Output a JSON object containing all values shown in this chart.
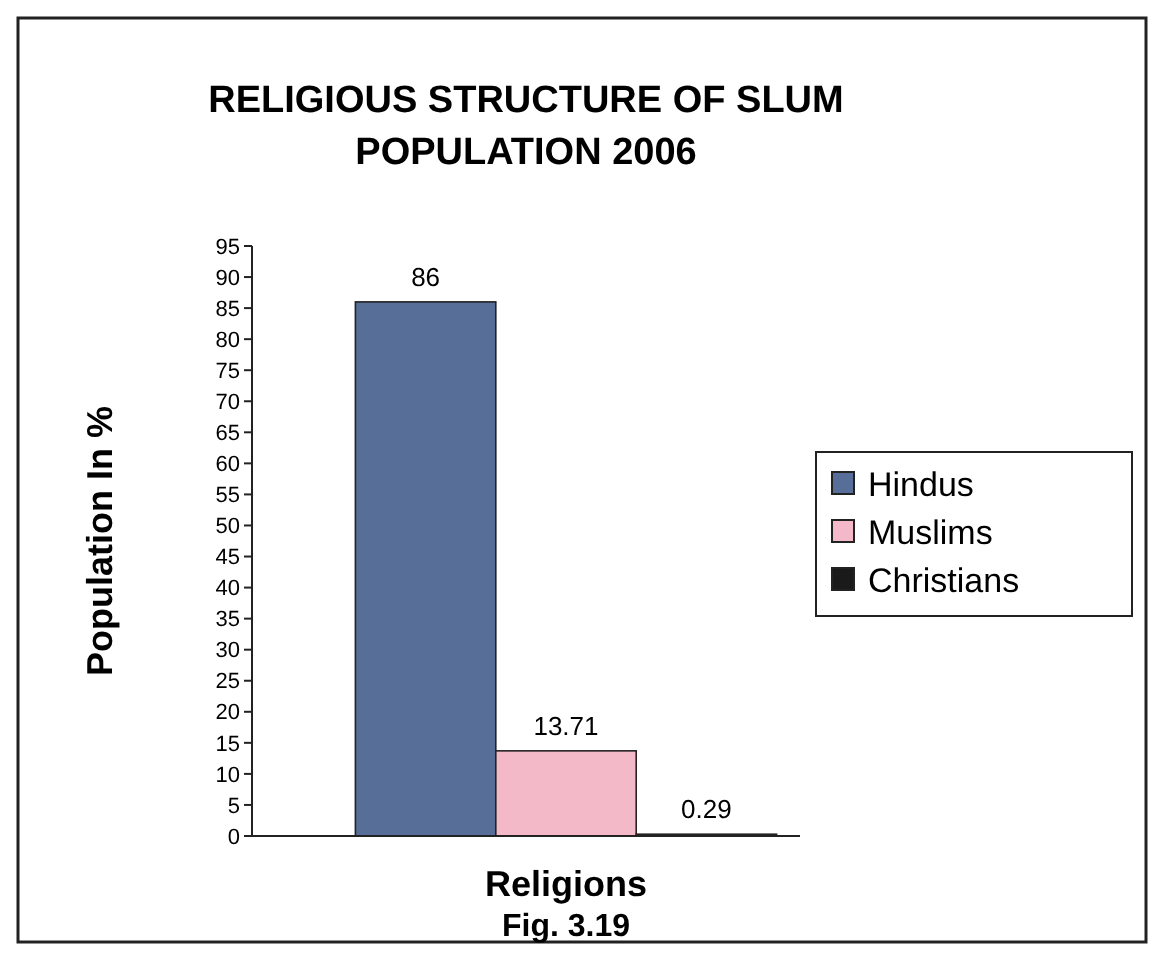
{
  "chart_data": {
    "type": "bar",
    "title": "RELIGIOUS STRUCTURE OF SLUM POPULATION 2006",
    "xlabel": "Religions",
    "ylabel": "Population In %",
    "annotations": [
      "Fig. 3.19"
    ],
    "categories": [
      null
    ],
    "series": [
      {
        "name": "Hindus",
        "color": "#566e98",
        "values": [
          86
        ]
      },
      {
        "name": "Muslims",
        "color": "#f3b9c9",
        "values": [
          13.71
        ]
      },
      {
        "name": "Christians",
        "color": "#1a1a1a",
        "values": [
          0.29
        ]
      }
    ],
    "ylim": [
      0,
      95
    ],
    "yticks": [
      0,
      5,
      10,
      15,
      20,
      25,
      30,
      35,
      40,
      45,
      50,
      55,
      60,
      65,
      70,
      75,
      80,
      85,
      90,
      95
    ],
    "data_labels": true,
    "legend": "right",
    "grid": false
  }
}
